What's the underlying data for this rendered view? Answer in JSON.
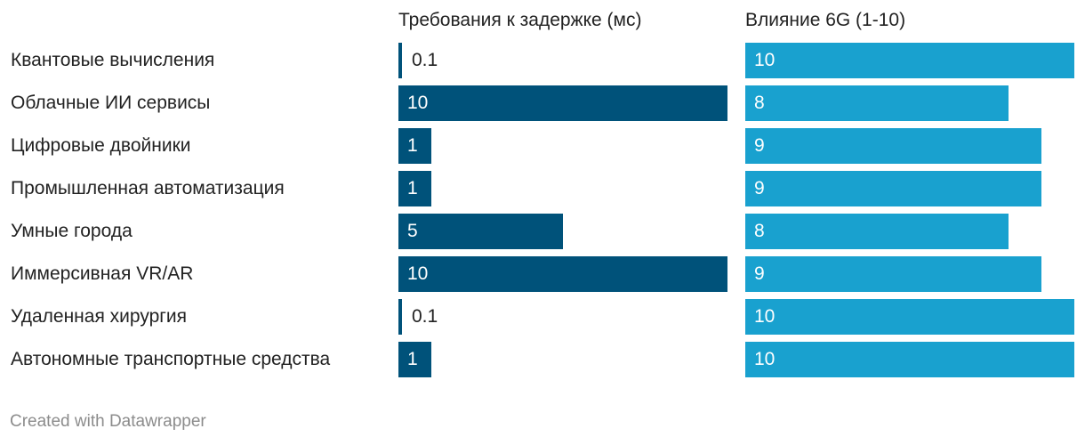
{
  "chart_data": {
    "type": "bar",
    "categories": [
      "Квантовые вычисления",
      "Облачные ИИ сервисы",
      "Цифровые двойники",
      "Промышленная автоматизация",
      "Умные города",
      "Иммерсивная VR/AR",
      "Удаленная хирургия",
      "Автономные транспортные средства"
    ],
    "series": [
      {
        "name": "Требования к задержке (мс)",
        "values": [
          0.1,
          10,
          1,
          1,
          5,
          10,
          0.1,
          1
        ],
        "labels": [
          "0.1",
          "10",
          "1",
          "1",
          "5",
          "10",
          "0.1",
          "1"
        ],
        "color": "#00527a",
        "max": 10
      },
      {
        "name": "Влияние 6G (1-10)",
        "values": [
          10,
          8,
          9,
          9,
          8,
          9,
          10,
          10
        ],
        "labels": [
          "10",
          "8",
          "9",
          "9",
          "8",
          "9",
          "10",
          "10"
        ],
        "color": "#19a1cf",
        "max": 10
      }
    ],
    "orientation": "horizontal",
    "grid": false,
    "legend": "none"
  },
  "footer": "Created with Datawrapper"
}
